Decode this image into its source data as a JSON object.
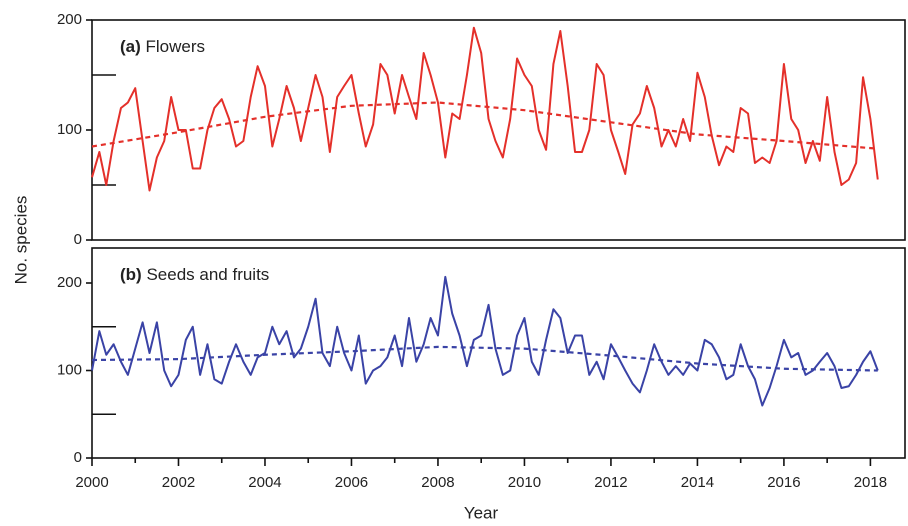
{
  "chart_data": [
    {
      "type": "line",
      "tag": "(a)",
      "label": "Flowers",
      "ylabel": "No. species",
      "xlim": [
        2000,
        2018.8
      ],
      "ylim": [
        0,
        200
      ],
      "yticks": [
        0,
        100,
        200
      ],
      "yminor": [
        50,
        150
      ],
      "series": [
        {
          "name": "Flowers",
          "color": "#e4302a",
          "style": "solid",
          "x": [
            2000,
            2000.17,
            2000.33,
            2000.5,
            2000.67,
            2000.83,
            2001,
            2001.17,
            2001.33,
            2001.5,
            2001.67,
            2001.83,
            2002,
            2002.17,
            2002.33,
            2002.5,
            2002.67,
            2002.83,
            2003,
            2003.17,
            2003.33,
            2003.5,
            2003.67,
            2003.83,
            2004,
            2004.17,
            2004.33,
            2004.5,
            2004.67,
            2004.83,
            2005,
            2005.17,
            2005.33,
            2005.5,
            2005.67,
            2005.83,
            2006,
            2006.17,
            2006.33,
            2006.5,
            2006.67,
            2006.83,
            2007,
            2007.17,
            2007.33,
            2007.5,
            2007.67,
            2007.83,
            2008,
            2008.17,
            2008.33,
            2008.5,
            2008.67,
            2008.83,
            2009,
            2009.17,
            2009.33,
            2009.5,
            2009.67,
            2009.83,
            2010,
            2010.17,
            2010.33,
            2010.5,
            2010.67,
            2010.83,
            2011,
            2011.17,
            2011.33,
            2011.5,
            2011.67,
            2011.83,
            2012,
            2012.17,
            2012.33,
            2012.5,
            2012.67,
            2012.83,
            2013,
            2013.17,
            2013.33,
            2013.5,
            2013.67,
            2013.83,
            2014,
            2014.17,
            2014.33,
            2014.5,
            2014.67,
            2014.83,
            2015,
            2015.17,
            2015.33,
            2015.5,
            2015.67,
            2015.83,
            2016,
            2016.17,
            2016.33,
            2016.5,
            2016.67,
            2016.83,
            2017,
            2017.17,
            2017.33,
            2017.5,
            2017.67,
            2017.83,
            2018,
            2018.17
          ],
          "values": [
            57,
            80,
            50,
            90,
            120,
            125,
            138,
            90,
            45,
            75,
            90,
            130,
            100,
            100,
            65,
            65,
            100,
            120,
            128,
            110,
            85,
            90,
            130,
            158,
            140,
            85,
            110,
            140,
            120,
            90,
            120,
            150,
            130,
            80,
            130,
            140,
            150,
            115,
            85,
            105,
            160,
            150,
            115,
            150,
            130,
            110,
            170,
            150,
            125,
            75,
            115,
            110,
            150,
            193,
            170,
            110,
            90,
            75,
            110,
            165,
            150,
            140,
            100,
            82,
            160,
            190,
            140,
            80,
            80,
            100,
            160,
            150,
            100,
            80,
            60,
            105,
            115,
            140,
            120,
            85,
            100,
            85,
            110,
            90,
            152,
            130,
            95,
            68,
            85,
            80,
            120,
            115,
            70,
            75,
            70,
            90,
            160,
            110,
            100,
            70,
            90,
            72,
            130,
            80,
            50,
            55,
            70,
            148,
            110,
            55
          ]
        },
        {
          "name": "Flowers trend",
          "color": "#e4302a",
          "style": "dashed",
          "x": [
            2000,
            2002,
            2004,
            2006,
            2008,
            2010,
            2012,
            2014,
            2016,
            2018.17
          ],
          "values": [
            85,
            98,
            112,
            122,
            125,
            118,
            107,
            96,
            90,
            83
          ]
        }
      ]
    },
    {
      "type": "line",
      "tag": "(b)",
      "label": "Seeds and fruits",
      "xlabel": "Year",
      "xlim": [
        2000,
        2018.8
      ],
      "ylim": [
        0,
        240
      ],
      "yticks": [
        0,
        100,
        200
      ],
      "yminor": [
        50,
        150
      ],
      "xticks": [
        2000,
        2002,
        2004,
        2006,
        2008,
        2010,
        2012,
        2014,
        2016,
        2018
      ],
      "xminor": [
        2001,
        2003,
        2005,
        2007,
        2009,
        2011,
        2013,
        2015,
        2017
      ],
      "series": [
        {
          "name": "Seeds and fruits",
          "color": "#3a43a6",
          "style": "solid",
          "x": [
            2000,
            2000.17,
            2000.33,
            2000.5,
            2000.67,
            2000.83,
            2001,
            2001.17,
            2001.33,
            2001.5,
            2001.67,
            2001.83,
            2002,
            2002.17,
            2002.33,
            2002.5,
            2002.67,
            2002.83,
            2003,
            2003.17,
            2003.33,
            2003.5,
            2003.67,
            2003.83,
            2004,
            2004.17,
            2004.33,
            2004.5,
            2004.67,
            2004.83,
            2005,
            2005.17,
            2005.33,
            2005.5,
            2005.67,
            2005.83,
            2006,
            2006.17,
            2006.33,
            2006.5,
            2006.67,
            2006.83,
            2007,
            2007.17,
            2007.33,
            2007.5,
            2007.67,
            2007.83,
            2008,
            2008.17,
            2008.33,
            2008.5,
            2008.67,
            2008.83,
            2009,
            2009.17,
            2009.33,
            2009.5,
            2009.67,
            2009.83,
            2010,
            2010.17,
            2010.33,
            2010.5,
            2010.67,
            2010.83,
            2011,
            2011.17,
            2011.33,
            2011.5,
            2011.67,
            2011.83,
            2012,
            2012.17,
            2012.33,
            2012.5,
            2012.67,
            2012.83,
            2013,
            2013.17,
            2013.33,
            2013.5,
            2013.67,
            2013.83,
            2014,
            2014.17,
            2014.33,
            2014.5,
            2014.67,
            2014.83,
            2015,
            2015.17,
            2015.33,
            2015.5,
            2015.67,
            2015.83,
            2016,
            2016.17,
            2016.33,
            2016.5,
            2016.67,
            2016.83,
            2017,
            2017.17,
            2017.33,
            2017.5,
            2017.67,
            2017.83,
            2018,
            2018.17
          ],
          "values": [
            100,
            145,
            118,
            130,
            110,
            95,
            125,
            155,
            120,
            155,
            100,
            82,
            95,
            135,
            150,
            95,
            130,
            90,
            85,
            110,
            130,
            110,
            95,
            115,
            120,
            150,
            130,
            145,
            115,
            125,
            150,
            182,
            120,
            105,
            150,
            120,
            100,
            140,
            85,
            100,
            105,
            115,
            140,
            105,
            160,
            110,
            130,
            160,
            140,
            207,
            165,
            140,
            105,
            135,
            140,
            175,
            125,
            95,
            100,
            140,
            160,
            110,
            95,
            135,
            170,
            160,
            120,
            140,
            140,
            95,
            110,
            90,
            130,
            115,
            100,
            85,
            75,
            100,
            130,
            110,
            95,
            105,
            95,
            108,
            100,
            135,
            130,
            115,
            90,
            95,
            130,
            105,
            90,
            60,
            80,
            105,
            135,
            115,
            120,
            95,
            100,
            110,
            120,
            105,
            80,
            82,
            95,
            110,
            122,
            100
          ]
        },
        {
          "name": "Seeds and fruits trend",
          "color": "#3a43a6",
          "style": "dashed",
          "x": [
            2000,
            2002,
            2004,
            2006,
            2008,
            2010,
            2012,
            2014,
            2016,
            2018.17
          ],
          "values": [
            112,
            113,
            118,
            122,
            127,
            125,
            117,
            108,
            102,
            100
          ]
        }
      ]
    }
  ]
}
